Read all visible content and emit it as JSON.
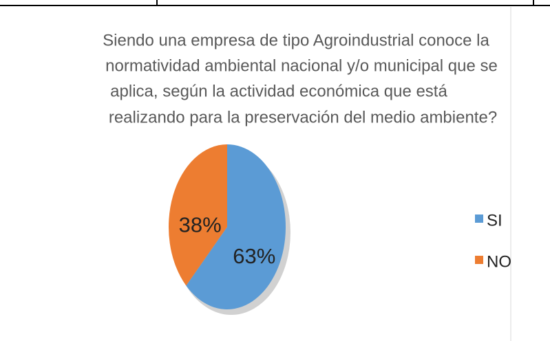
{
  "chart_data": {
    "type": "pie",
    "title": [
      "Siendo una empresa de tipo Agroindustrial conoce la",
      "normatividad ambiental nacional y/o municipal que se",
      "aplica, según la actividad  económica que está",
      "realizando para la preservación del medio ambiente?"
    ],
    "categories": [
      "SI",
      "NO"
    ],
    "values": [
      63,
      38
    ],
    "value_labels": [
      "63%",
      "38%"
    ],
    "colors": [
      "#5b9bd5",
      "#ed7d31"
    ],
    "legend": "right"
  }
}
